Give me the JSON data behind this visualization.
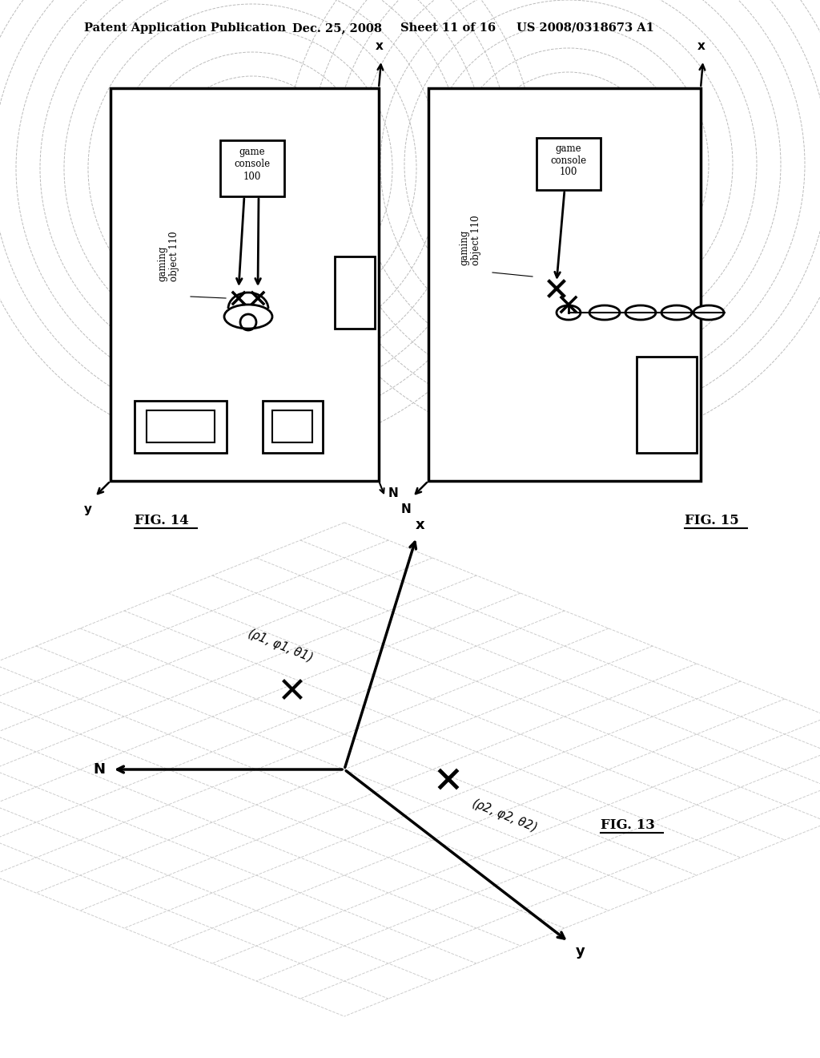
{
  "bg_color": "#ffffff",
  "header_text": "Patent Application Publication",
  "header_date": "Dec. 25, 2008",
  "header_sheet": "Sheet 11 of 16",
  "header_patent": "US 2008/0318673 A1",
  "fig14_label": "FIG. 14",
  "fig15_label": "FIG. 15",
  "fig13_label": "FIG. 13",
  "text_color": "#000000",
  "dashed_color": "#bbbbbb",
  "grid_color": "#cccccc"
}
